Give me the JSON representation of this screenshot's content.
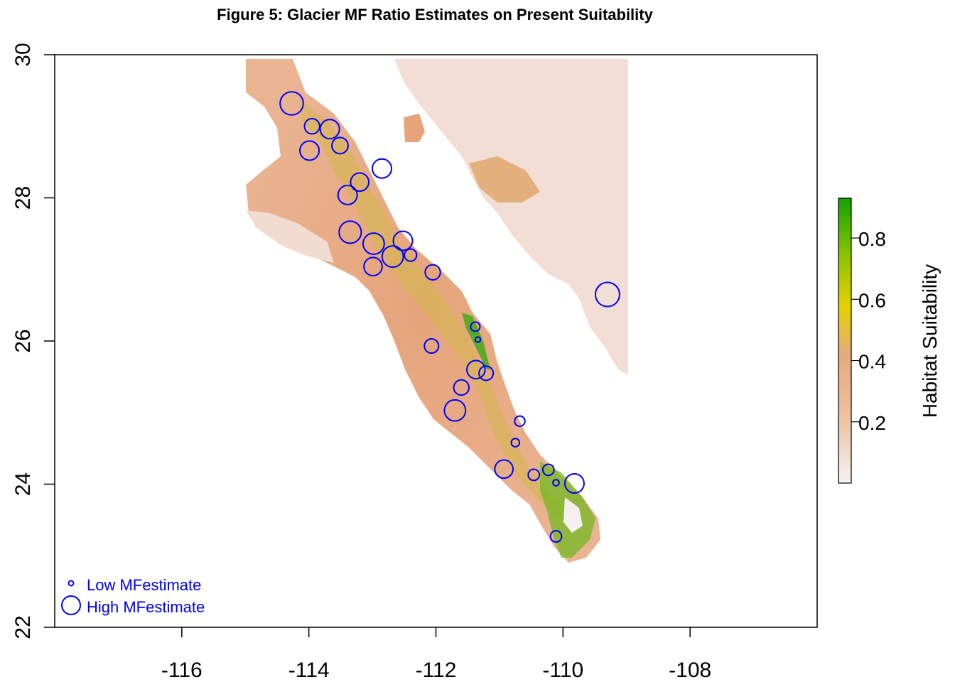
{
  "title": "Figure 5: Glacier MF Ratio Estimates on Present Suitability",
  "chart_data": {
    "type": "scatter",
    "title": "Figure 5: Glacier MF Ratio Estimates on Present Suitability",
    "xlim": [
      -118,
      -106
    ],
    "ylim": [
      22,
      30
    ],
    "x_ticks": [
      -116,
      -114,
      -112,
      -110,
      -108
    ],
    "y_ticks": [
      22,
      24,
      26,
      28,
      30
    ],
    "x_tick_labels": [
      "-116",
      "-114",
      "-112",
      "-110",
      "-108"
    ],
    "y_tick_labels": [
      "22",
      "24",
      "26",
      "28",
      "30"
    ],
    "colorbar": {
      "label": "Habitat Suitability",
      "range": [
        0,
        0.93
      ],
      "ticks": [
        0.2,
        0.4,
        0.6,
        0.8
      ],
      "tick_labels": [
        "0.2",
        "0.4",
        "0.6",
        "0.8"
      ],
      "colors": [
        "#f2f2f2",
        "#eebe9a",
        "#e6d100",
        "#11a200"
      ]
    },
    "point_color": "#0000ff",
    "legend": {
      "position": "bottom-left",
      "items": [
        {
          "label": "Low MFestimate",
          "size": "small"
        },
        {
          "label": "High MFestimate",
          "size": "large"
        }
      ]
    },
    "points": [
      {
        "lon": -114.27,
        "lat": 29.32,
        "mf": 0.95
      },
      {
        "lon": -113.95,
        "lat": 29.0,
        "mf": 0.55
      },
      {
        "lon": -113.67,
        "lat": 28.96,
        "mf": 0.75
      },
      {
        "lon": -113.99,
        "lat": 28.66,
        "mf": 0.75
      },
      {
        "lon": -113.51,
        "lat": 28.73,
        "mf": 0.6
      },
      {
        "lon": -112.85,
        "lat": 28.41,
        "mf": 0.75
      },
      {
        "lon": -113.2,
        "lat": 28.22,
        "mf": 0.7
      },
      {
        "lon": -113.39,
        "lat": 28.04,
        "mf": 0.75
      },
      {
        "lon": -113.35,
        "lat": 27.52,
        "mf": 0.9
      },
      {
        "lon": -112.98,
        "lat": 27.36,
        "mf": 0.85
      },
      {
        "lon": -112.52,
        "lat": 27.4,
        "mf": 0.75
      },
      {
        "lon": -112.68,
        "lat": 27.18,
        "mf": 0.85
      },
      {
        "lon": -112.4,
        "lat": 27.2,
        "mf": 0.4
      },
      {
        "lon": -112.99,
        "lat": 27.04,
        "mf": 0.7
      },
      {
        "lon": -112.05,
        "lat": 26.96,
        "mf": 0.55
      },
      {
        "lon": -111.38,
        "lat": 26.2,
        "mf": 0.25
      },
      {
        "lon": -111.34,
        "lat": 26.02,
        "mf": 0.05
      },
      {
        "lon": -112.07,
        "lat": 25.93,
        "mf": 0.5
      },
      {
        "lon": -111.37,
        "lat": 25.6,
        "mf": 0.7
      },
      {
        "lon": -111.21,
        "lat": 25.55,
        "mf": 0.5
      },
      {
        "lon": -111.6,
        "lat": 25.35,
        "mf": 0.55
      },
      {
        "lon": -111.7,
        "lat": 25.03,
        "mf": 0.85
      },
      {
        "lon": -110.68,
        "lat": 24.88,
        "mf": 0.3
      },
      {
        "lon": -110.75,
        "lat": 24.58,
        "mf": 0.2
      },
      {
        "lon": -110.93,
        "lat": 24.21,
        "mf": 0.7
      },
      {
        "lon": -110.46,
        "lat": 24.13,
        "mf": 0.35
      },
      {
        "lon": -110.23,
        "lat": 24.2,
        "mf": 0.35
      },
      {
        "lon": -110.11,
        "lat": 24.02,
        "mf": 0.1
      },
      {
        "lon": -109.82,
        "lat": 24.01,
        "mf": 0.75
      },
      {
        "lon": -110.11,
        "lat": 23.27,
        "mf": 0.35
      },
      {
        "lon": -109.3,
        "lat": 26.65,
        "mf": 1.0
      }
    ]
  }
}
